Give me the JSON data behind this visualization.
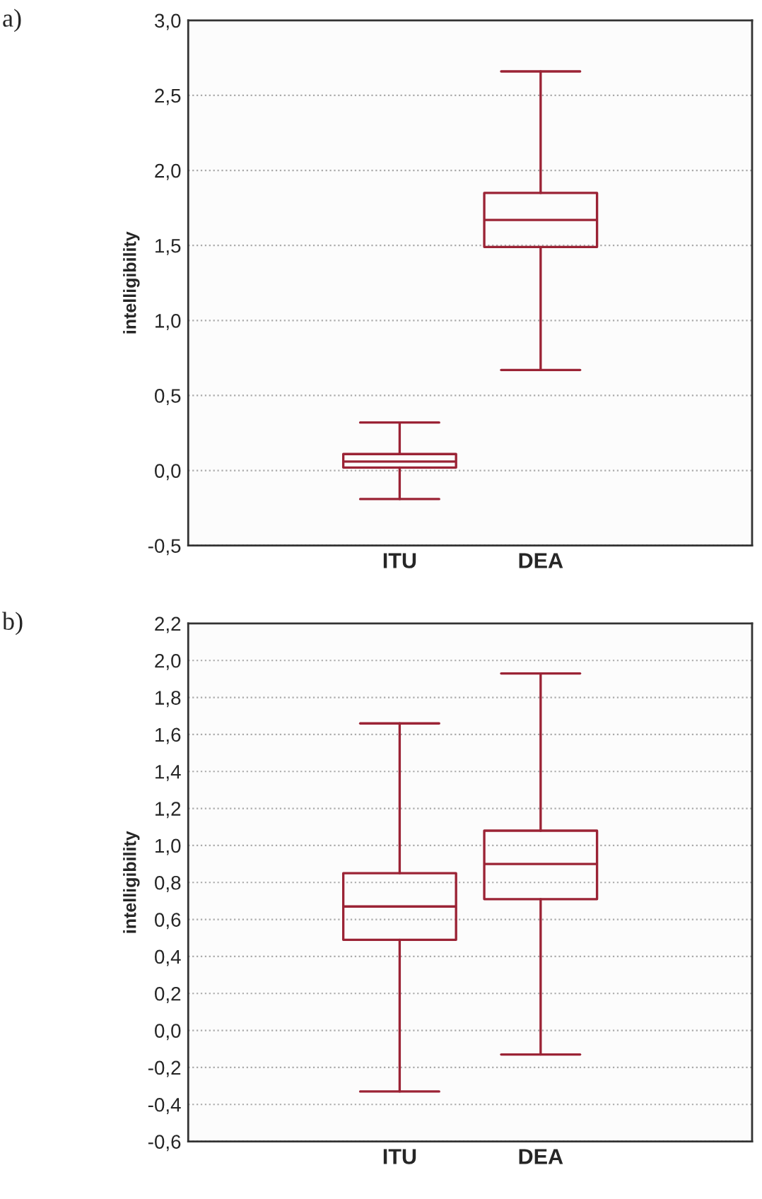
{
  "chart_data": [
    {
      "type": "box",
      "title": "a)",
      "ylabel": "intelligibility",
      "categories": [
        "ITU",
        "DEA"
      ],
      "color": "#9b2335",
      "boxes": [
        {
          "low": -0.19,
          "q1": 0.02,
          "median": 0.06,
          "q3": 0.11,
          "high": 0.32
        },
        {
          "low": 0.67,
          "q1": 1.49,
          "median": 1.67,
          "q3": 1.85,
          "high": 2.66
        }
      ],
      "ylim": [
        -0.5,
        3.0
      ],
      "yticks": [
        {
          "value": -0.5,
          "label": "-0,5"
        },
        {
          "value": 0,
          "label": "0,0"
        },
        {
          "value": 0.5,
          "label": "0,5"
        },
        {
          "value": 1.0,
          "label": "1,0"
        },
        {
          "value": 1.5,
          "label": "1,5"
        },
        {
          "value": 2.0,
          "label": "2,0"
        },
        {
          "value": 2.5,
          "label": "2,5"
        },
        {
          "value": 3.0,
          "label": "3,0"
        }
      ],
      "grid": "y"
    },
    {
      "type": "box",
      "title": "b)",
      "ylabel": "intelligibility",
      "categories": [
        "ITU",
        "DEA"
      ],
      "color": "#9b2335",
      "boxes": [
        {
          "low": -0.33,
          "q1": 0.49,
          "median": 0.67,
          "q3": 0.85,
          "high": 1.66
        },
        {
          "low": -0.13,
          "q1": 0.71,
          "median": 0.9,
          "q3": 1.08,
          "high": 1.93
        }
      ],
      "ylim": [
        -0.6,
        2.2
      ],
      "yticks": [
        {
          "value": -0.6,
          "label": "-0,6"
        },
        {
          "value": -0.4,
          "label": "-0,4"
        },
        {
          "value": -0.2,
          "label": "-0,2"
        },
        {
          "value": 0,
          "label": "0,0"
        },
        {
          "value": 0.2,
          "label": "0,2"
        },
        {
          "value": 0.4,
          "label": "0,4"
        },
        {
          "value": 0.6,
          "label": "0,6"
        },
        {
          "value": 0.8,
          "label": "0,8"
        },
        {
          "value": 1.0,
          "label": "1,0"
        },
        {
          "value": 1.2,
          "label": "1,2"
        },
        {
          "value": 1.4,
          "label": "1,4"
        },
        {
          "value": 1.6,
          "label": "1,6"
        },
        {
          "value": 1.8,
          "label": "1,8"
        },
        {
          "value": 2.0,
          "label": "2,0"
        },
        {
          "value": 2.2,
          "label": "2,2"
        }
      ],
      "grid": "y"
    }
  ]
}
